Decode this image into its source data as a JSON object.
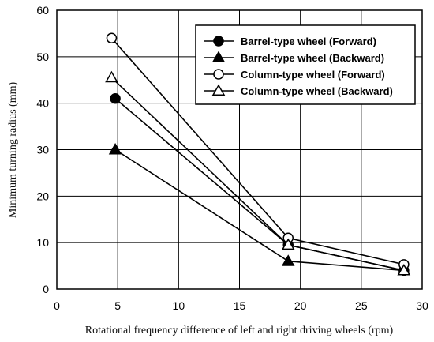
{
  "chart_data": {
    "type": "line",
    "xlabel": "Rotational frequency difference of left and right driving wheels (rpm)",
    "ylabel": "Minimum turning radius (mm)",
    "xlim": [
      0,
      30
    ],
    "ylim": [
      0,
      60
    ],
    "xticks": [
      0,
      5,
      10,
      15,
      20,
      25,
      30
    ],
    "yticks": [
      0,
      10,
      20,
      30,
      40,
      50,
      60
    ],
    "xtick_labels": [
      "0",
      "5",
      "10",
      "15",
      "20",
      "25",
      "30"
    ],
    "ytick_labels": [
      "0",
      "10",
      "20",
      "30",
      "40",
      "50",
      "60"
    ],
    "grid": true,
    "legend_position": "top-right",
    "series": [
      {
        "name": "Barrel-type wheel (Forward)",
        "marker": "filled-circle",
        "points": [
          [
            4.8,
            41
          ],
          [
            19,
            9.5
          ],
          [
            28.5,
            4
          ]
        ]
      },
      {
        "name": "Barrel-type wheel (Backward)",
        "marker": "filled-triangle",
        "points": [
          [
            4.8,
            30
          ],
          [
            19,
            6
          ],
          [
            28.5,
            4
          ]
        ]
      },
      {
        "name": "Column-type wheel (Forward)",
        "marker": "open-circle",
        "points": [
          [
            4.5,
            54
          ],
          [
            19,
            11
          ],
          [
            28.5,
            5.3
          ]
        ]
      },
      {
        "name": "Column-type wheel (Backward)",
        "marker": "open-triangle",
        "points": [
          [
            4.5,
            45.5
          ],
          [
            19,
            9.5
          ],
          [
            28.5,
            4
          ]
        ]
      }
    ]
  }
}
